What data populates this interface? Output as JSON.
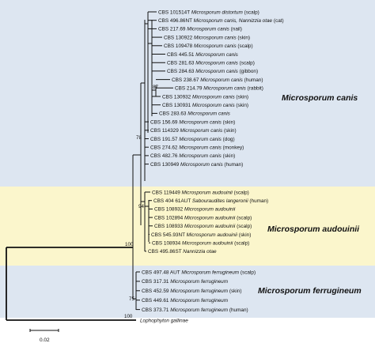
{
  "colors": {
    "canis_band": "#dde6f1",
    "audouinii_band": "#fbf6cc",
    "ferrugineum_band": "#dde6f1",
    "branch": "#111111"
  },
  "clades": {
    "canis": "Microsporum canis",
    "audouinii": "Microsporum audouinii",
    "ferrugineum": "Microsporum ferrugineum"
  },
  "leaves": [
    {
      "id": "CBS 101514T",
      "species": "Microsporum distortum",
      "note": "(scalp)"
    },
    {
      "id": "CBS 496.86NT",
      "species": "Microsporum canis, Nannizzia otae",
      "note": "(cat)"
    },
    {
      "id": "CBS 217.69",
      "species": "Microsporum canis",
      "note": "(nail)"
    },
    {
      "id": "CBS 130922",
      "species": "Microsporum canis",
      "note": "(skin)"
    },
    {
      "id": "CBS 109478",
      "species": "Microsporum canis",
      "note": "(scalp)"
    },
    {
      "id": "CBS 445.51",
      "species": "Microsporum canis",
      "note": ""
    },
    {
      "id": "CBS 281.63",
      "species": "Microsporum canis",
      "note": "(scalp)"
    },
    {
      "id": "CBS 284.63",
      "species": "Microsporum canis",
      "note": "(gibbon)"
    },
    {
      "id": "CBS 238.67",
      "species": "Microsporum canis",
      "note": "(human)"
    },
    {
      "id": "CBS 214.79",
      "species": "Microsporum canis",
      "note": "(rabbit)"
    },
    {
      "id": "CBS 130932",
      "species": "Microsporum canis",
      "note": "(skin)"
    },
    {
      "id": "CBS 130931",
      "species": "Microsporum canis",
      "note": "(skin)"
    },
    {
      "id": "CBS 283.63",
      "species": "Microsporum canis",
      "note": ""
    },
    {
      "id": "CBS 156.69",
      "species": "Microsporum canis",
      "note": "(skin)"
    },
    {
      "id": "CBS 114329",
      "species": "Microsporum canis",
      "note": "(skin)"
    },
    {
      "id": "CBS 191.57",
      "species": "Microsporum canis",
      "note": "(dog)"
    },
    {
      "id": "CBS 274.62",
      "species": "Microsporum canis",
      "note": "(monkey)"
    },
    {
      "id": "CBS 482.76",
      "species": "Microsporum canis",
      "note": "(skin)"
    },
    {
      "id": "CBS 130949",
      "species": "Microsporum canis",
      "note": "(human)"
    },
    {
      "id": "CBS 119449",
      "species": "Microsporum audouinii",
      "note": "(scalp)"
    },
    {
      "id": "CBS 404 61AUT",
      "species": "Sabouraudites langeronii",
      "note": "(human)"
    },
    {
      "id": "CBS 108932",
      "species": "Microsporum audouinii",
      "note": ""
    },
    {
      "id": "CBS 102894",
      "species": "Microsporum audouinii",
      "note": "(scalp)"
    },
    {
      "id": "CBS 108933",
      "species": "Microsporum audouinii",
      "note": "(scalp)"
    },
    {
      "id": "CBS 545.93NT",
      "species": "Microsporum audouinii",
      "note": "(skin)"
    },
    {
      "id": "CBS 108934",
      "species": "Microsporum audouinii",
      "note": "(scalp)"
    },
    {
      "id": "CBS 495.86ST",
      "species": "Nannizzia otae",
      "note": ""
    },
    {
      "id": "CBS 497.48 AUT",
      "species": "Microsporum ferrugineum",
      "note": "(scalp)"
    },
    {
      "id": "CBS 317.31",
      "species": "Microsporum ferrugineum",
      "note": ""
    },
    {
      "id": "CBS 452.59",
      "species": "Microsporum ferrugineum",
      "note": "(skin)"
    },
    {
      "id": "CBS 449.61",
      "species": "Microsporum ferrugineum",
      "note": ""
    },
    {
      "id": "CBS 373.71",
      "species": "Microsporum ferrugineum",
      "note": "(human)"
    },
    {
      "id": "",
      "species": "Lophophyton gallinae",
      "note": ""
    }
  ],
  "bootstrap": {
    "canis_node": "78",
    "canis_sub": "87",
    "audouinii_node": "94",
    "root_node": "100",
    "ferrugineum_node": "75",
    "outgroup_node": "100"
  },
  "scale_bar": "0.02"
}
